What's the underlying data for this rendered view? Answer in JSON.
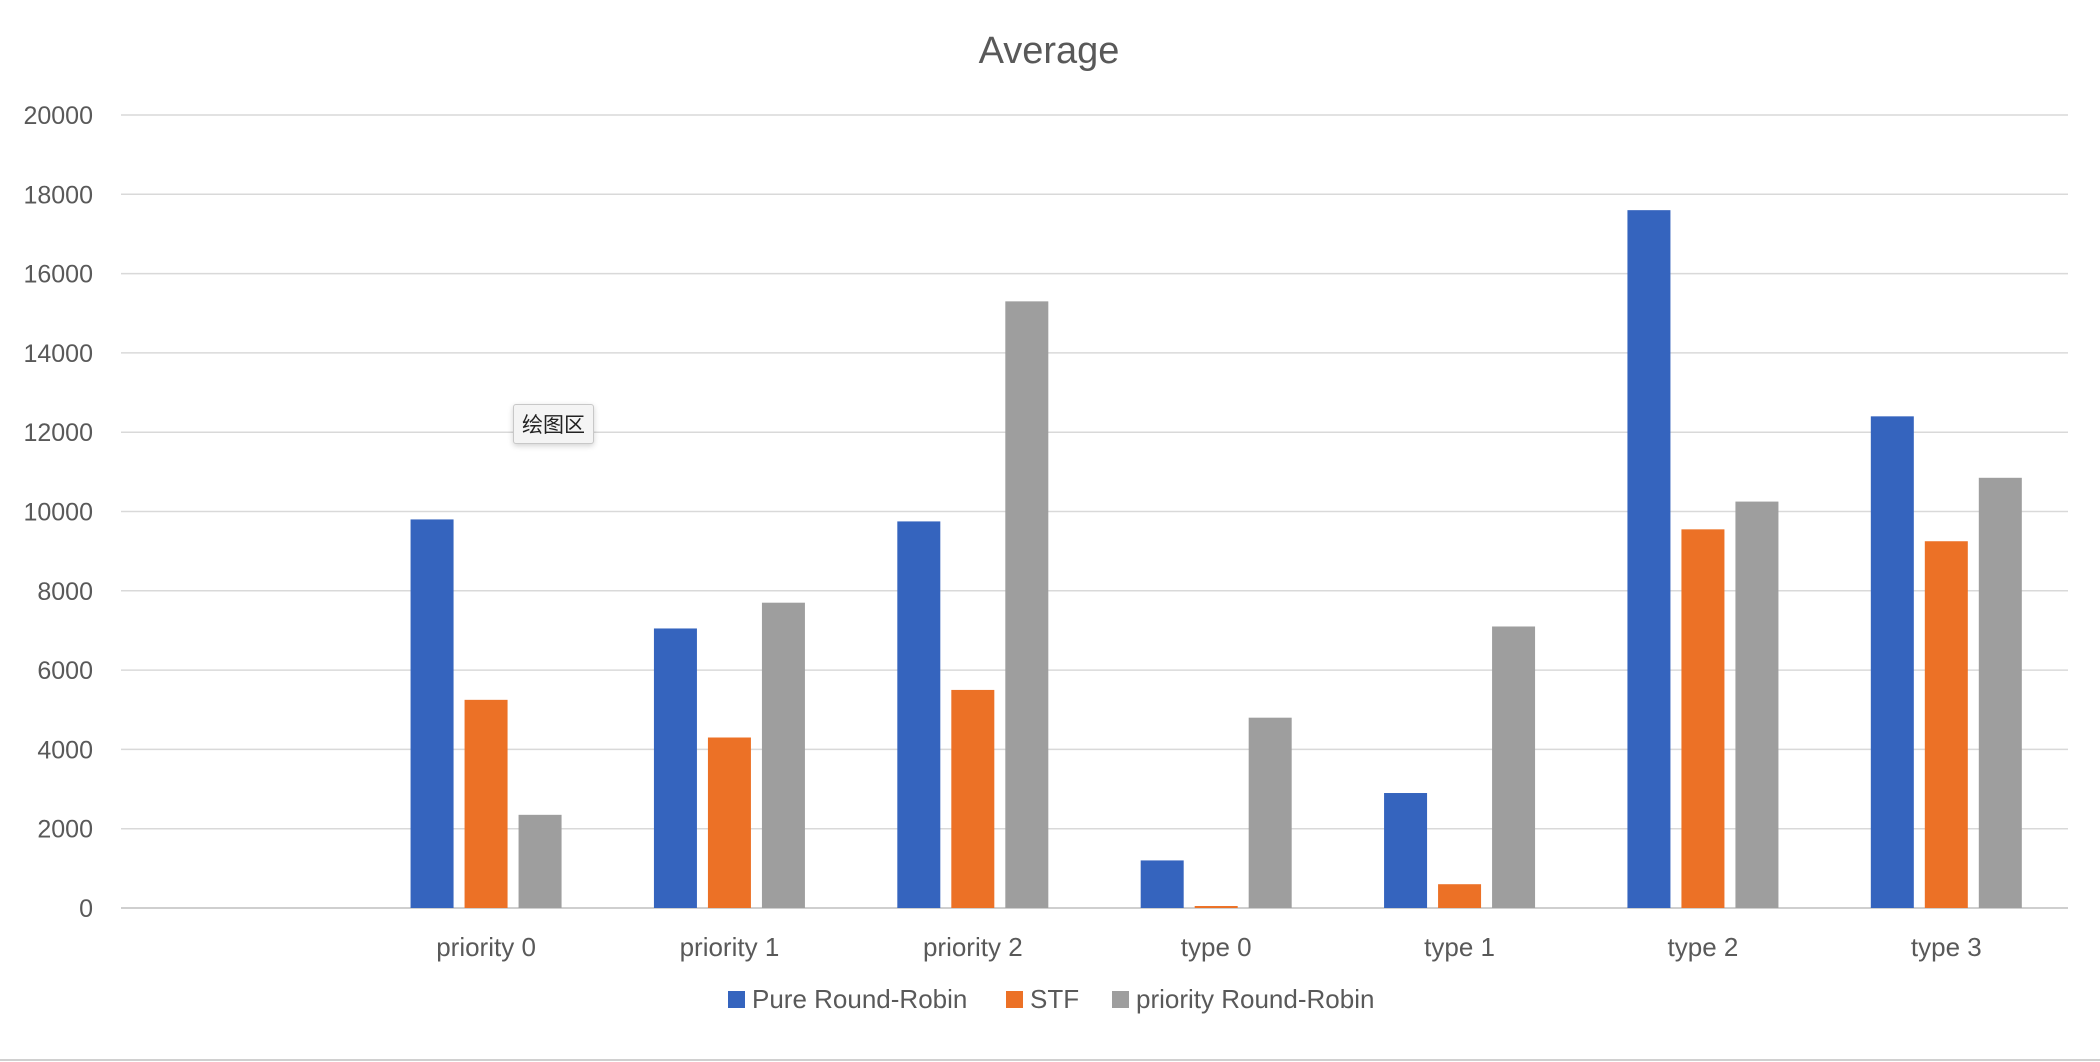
{
  "chart_data": {
    "type": "bar",
    "title": "Average",
    "xlabel": "",
    "ylabel": "",
    "ylim": [
      0,
      20000
    ],
    "yticks": [
      0,
      2000,
      4000,
      6000,
      8000,
      10000,
      12000,
      14000,
      16000,
      18000,
      20000
    ],
    "grid": true,
    "legend_position": "bottom",
    "categories": [
      "",
      "priority 0",
      "priority 1",
      "priority 2",
      "type 0",
      "type 1",
      "type 2",
      "type 3"
    ],
    "series": [
      {
        "name": "Pure Round-Robin",
        "color": "#3564BE",
        "values": [
          null,
          9800,
          7050,
          9750,
          1200,
          2900,
          17600,
          12400
        ]
      },
      {
        "name": "STF",
        "color": "#EC7126",
        "values": [
          null,
          5250,
          4300,
          5500,
          50,
          600,
          9550,
          9250
        ]
      },
      {
        "name": "priority Round-Robin",
        "color": "#9E9E9E",
        "values": [
          null,
          2350,
          7700,
          15300,
          4800,
          7100,
          10250,
          10850
        ]
      }
    ]
  },
  "tooltip": {
    "label": "绘图区"
  }
}
